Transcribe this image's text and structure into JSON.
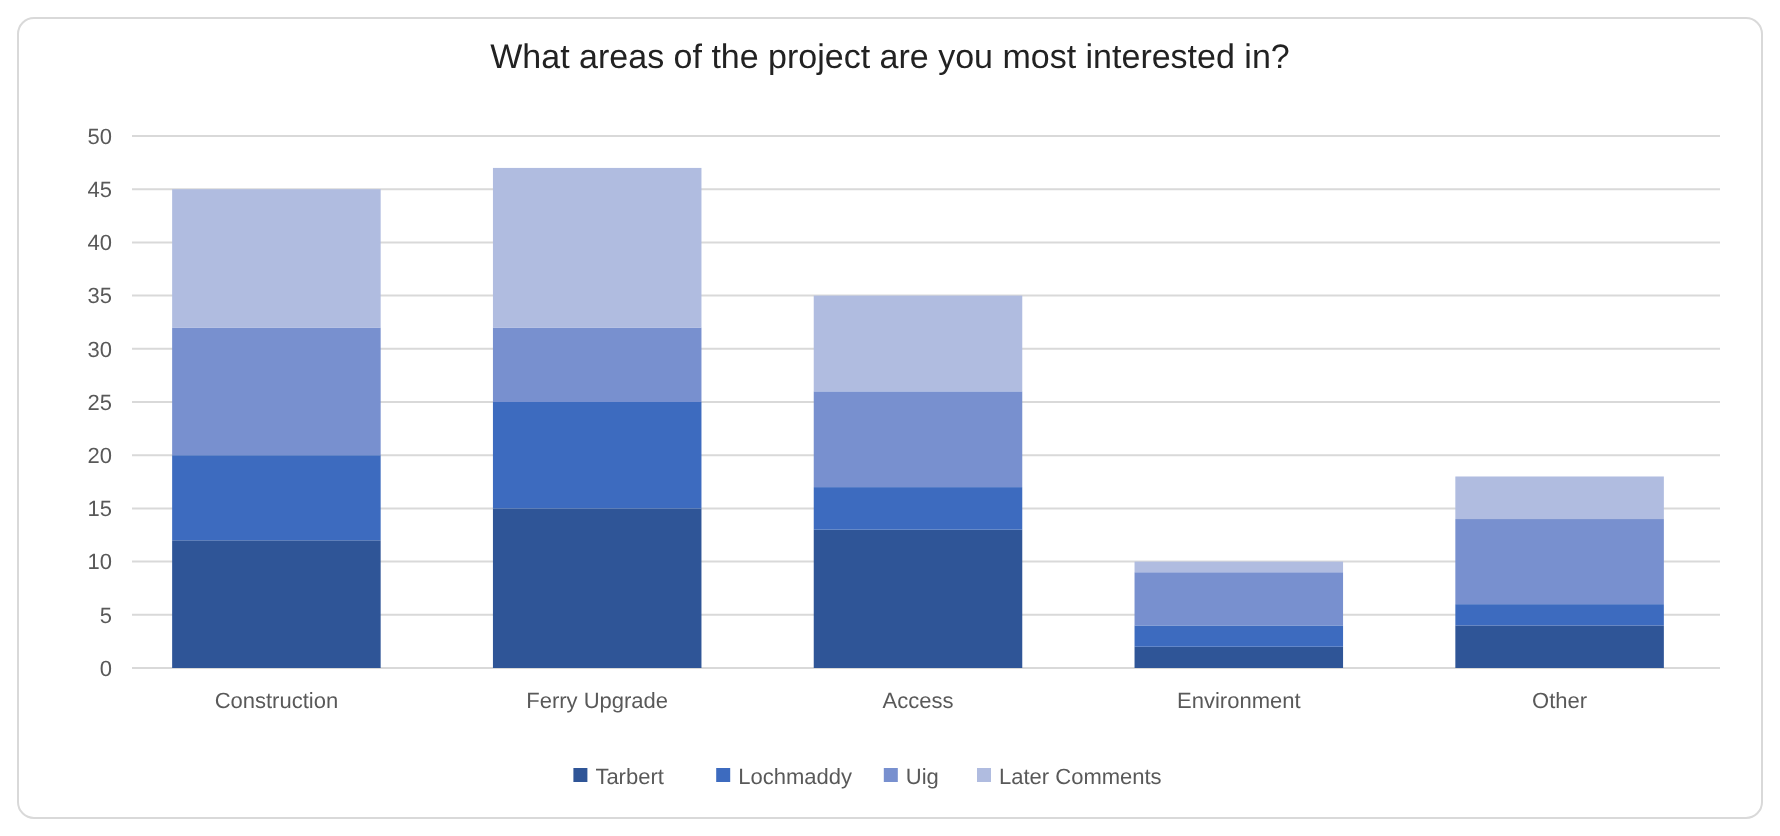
{
  "chart_data": {
    "type": "bar",
    "title": "What areas of the project are you most interested in?",
    "categories": [
      "Construction",
      "Ferry Upgrade",
      "Access",
      "Environment",
      "Other"
    ],
    "series": [
      {
        "name": "Tarbert",
        "color": "#2f5597",
        "values": [
          12,
          15,
          13,
          2,
          4
        ]
      },
      {
        "name": "Lochmaddy",
        "color": "#3d6bbf",
        "values": [
          8,
          10,
          4,
          2,
          2
        ]
      },
      {
        "name": "Uig",
        "color": "#7890cf",
        "values": [
          12,
          7,
          9,
          5,
          8
        ]
      },
      {
        "name": "Later Comments",
        "color": "#b0bce0",
        "values": [
          13,
          15,
          9,
          1,
          4
        ]
      }
    ],
    "stacked": true,
    "ylim": [
      0,
      50
    ],
    "yticks": [
      0,
      5,
      10,
      15,
      20,
      25,
      30,
      35,
      40,
      45,
      50
    ],
    "grid": "y",
    "legend": "bottom"
  }
}
